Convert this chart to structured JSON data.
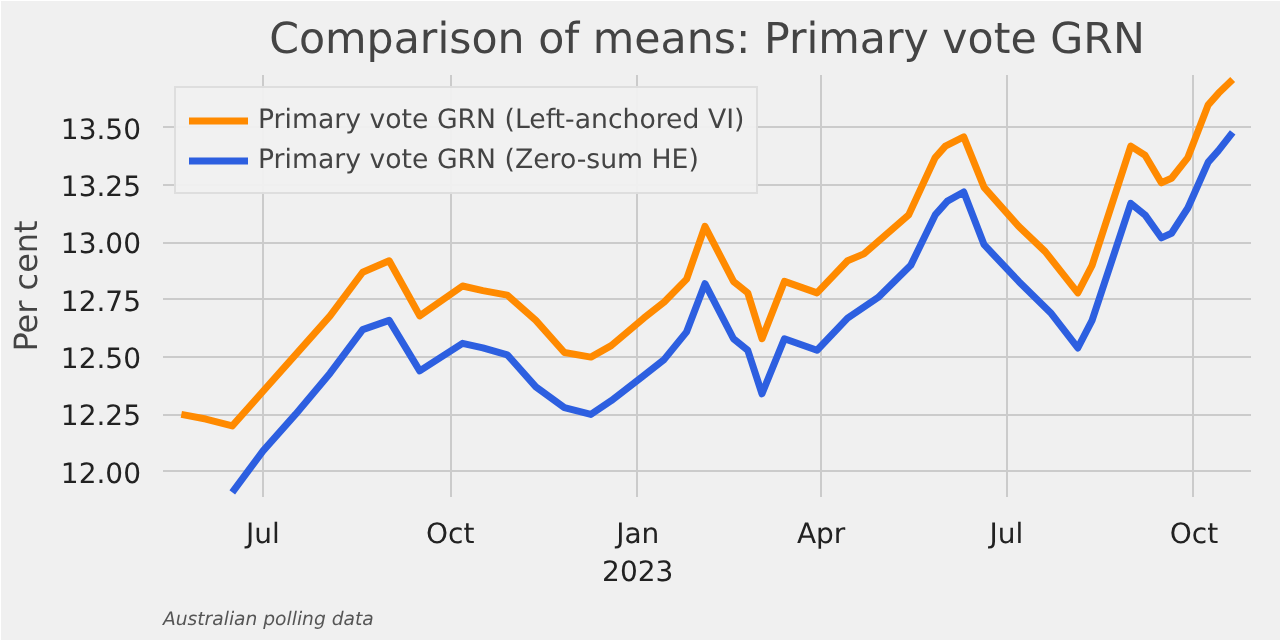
{
  "chart_data": {
    "type": "line",
    "title": "Comparison of means: Primary vote GRN",
    "ylabel": "Per cent",
    "xlim": [
      "2022-05-13",
      "2023-10-29"
    ],
    "ylim": [
      11.89,
      13.73
    ],
    "xticks": [
      {
        "value": "2022-07-01",
        "label": "Jul"
      },
      {
        "value": "2022-10-01",
        "label": "Oct"
      },
      {
        "value": "2023-01-01",
        "label": "Jan\n2023"
      },
      {
        "value": "2023-04-01",
        "label": "Apr"
      },
      {
        "value": "2023-07-01",
        "label": "Jul"
      },
      {
        "value": "2023-10-01",
        "label": "Oct"
      }
    ],
    "yticks": [
      {
        "value": 12,
        "label": "12.00"
      },
      {
        "value": 12.25,
        "label": "12.25"
      },
      {
        "value": 12.5,
        "label": "12.50"
      },
      {
        "value": 12.75,
        "label": "12.75"
      },
      {
        "value": 13,
        "label": "13.00"
      },
      {
        "value": 13.25,
        "label": "13.25"
      },
      {
        "value": 13.5,
        "label": "13.50"
      }
    ],
    "grid": true,
    "legend": "top left",
    "marker": "none",
    "line_style": "solid",
    "annotations": [
      "Australian polling data"
    ],
    "series": [
      {
        "name": "Primary vote GRN (Left-anchored VI)",
        "color": "#ff8a00",
        "x": [
          "2022-05-22",
          "2022-06-03",
          "2022-06-16",
          "2022-07-01",
          "2022-07-17",
          "2022-08-03",
          "2022-08-19",
          "2022-09-01",
          "2022-09-16",
          "2022-10-07",
          "2022-10-17",
          "2022-10-29",
          "2022-11-12",
          "2022-11-26",
          "2022-12-09",
          "2022-12-19",
          "2023-01-04",
          "2023-01-14",
          "2023-01-25",
          "2023-02-03",
          "2023-02-17",
          "2023-02-24",
          "2023-03-03",
          "2023-03-14",
          "2023-03-30",
          "2023-04-14",
          "2023-04-22",
          "2023-05-14",
          "2023-05-27",
          "2023-06-01",
          "2023-06-10",
          "2023-06-20",
          "2023-07-07",
          "2023-07-20",
          "2023-08-05",
          "2023-08-12",
          "2023-08-31",
          "2023-09-07",
          "2023-09-15",
          "2023-09-20",
          "2023-09-28",
          "2023-10-08",
          "2023-10-13",
          "2023-10-20"
        ],
        "values": [
          12.25,
          12.23,
          12.2,
          12.35,
          12.51,
          12.68,
          12.87,
          12.92,
          12.68,
          12.81,
          12.79,
          12.77,
          12.66,
          12.52,
          12.5,
          12.55,
          12.67,
          12.74,
          12.84,
          13.07,
          12.83,
          12.78,
          12.58,
          12.83,
          12.78,
          12.92,
          12.95,
          13.12,
          13.37,
          13.42,
          13.46,
          13.24,
          13.07,
          12.96,
          12.78,
          12.9,
          13.42,
          13.38,
          13.26,
          13.28,
          13.37,
          13.6,
          13.65,
          13.71
        ]
      },
      {
        "name": "Primary vote GRN (Zero-sum HE)",
        "color": "#2d5fe0",
        "x": [
          "2022-06-16",
          "2022-07-01",
          "2022-07-17",
          "2022-08-03",
          "2022-08-19",
          "2022-09-01",
          "2022-09-16",
          "2022-10-07",
          "2022-10-17",
          "2022-10-29",
          "2022-11-12",
          "2022-11-26",
          "2022-12-09",
          "2022-12-19",
          "2023-01-04",
          "2023-01-14",
          "2023-01-25",
          "2023-02-03",
          "2023-02-17",
          "2023-02-24",
          "2023-03-03",
          "2023-03-14",
          "2023-03-30",
          "2023-04-14",
          "2023-04-29",
          "2023-05-15",
          "2023-05-27",
          "2023-06-02",
          "2023-06-10",
          "2023-06-20",
          "2023-07-07",
          "2023-07-23",
          "2023-08-05",
          "2023-08-12",
          "2023-08-31",
          "2023-09-07",
          "2023-09-15",
          "2023-09-20",
          "2023-09-28",
          "2023-10-08",
          "2023-10-13",
          "2023-10-20"
        ],
        "values": [
          11.91,
          12.09,
          12.25,
          12.43,
          12.62,
          12.66,
          12.44,
          12.56,
          12.54,
          12.51,
          12.37,
          12.28,
          12.25,
          12.31,
          12.42,
          12.49,
          12.61,
          12.82,
          12.58,
          12.53,
          12.34,
          12.58,
          12.53,
          12.67,
          12.76,
          12.9,
          13.12,
          13.18,
          13.22,
          12.99,
          12.83,
          12.69,
          12.54,
          12.66,
          13.17,
          13.12,
          13.02,
          13.04,
          13.15,
          13.35,
          13.4,
          13.48
        ]
      }
    ]
  }
}
